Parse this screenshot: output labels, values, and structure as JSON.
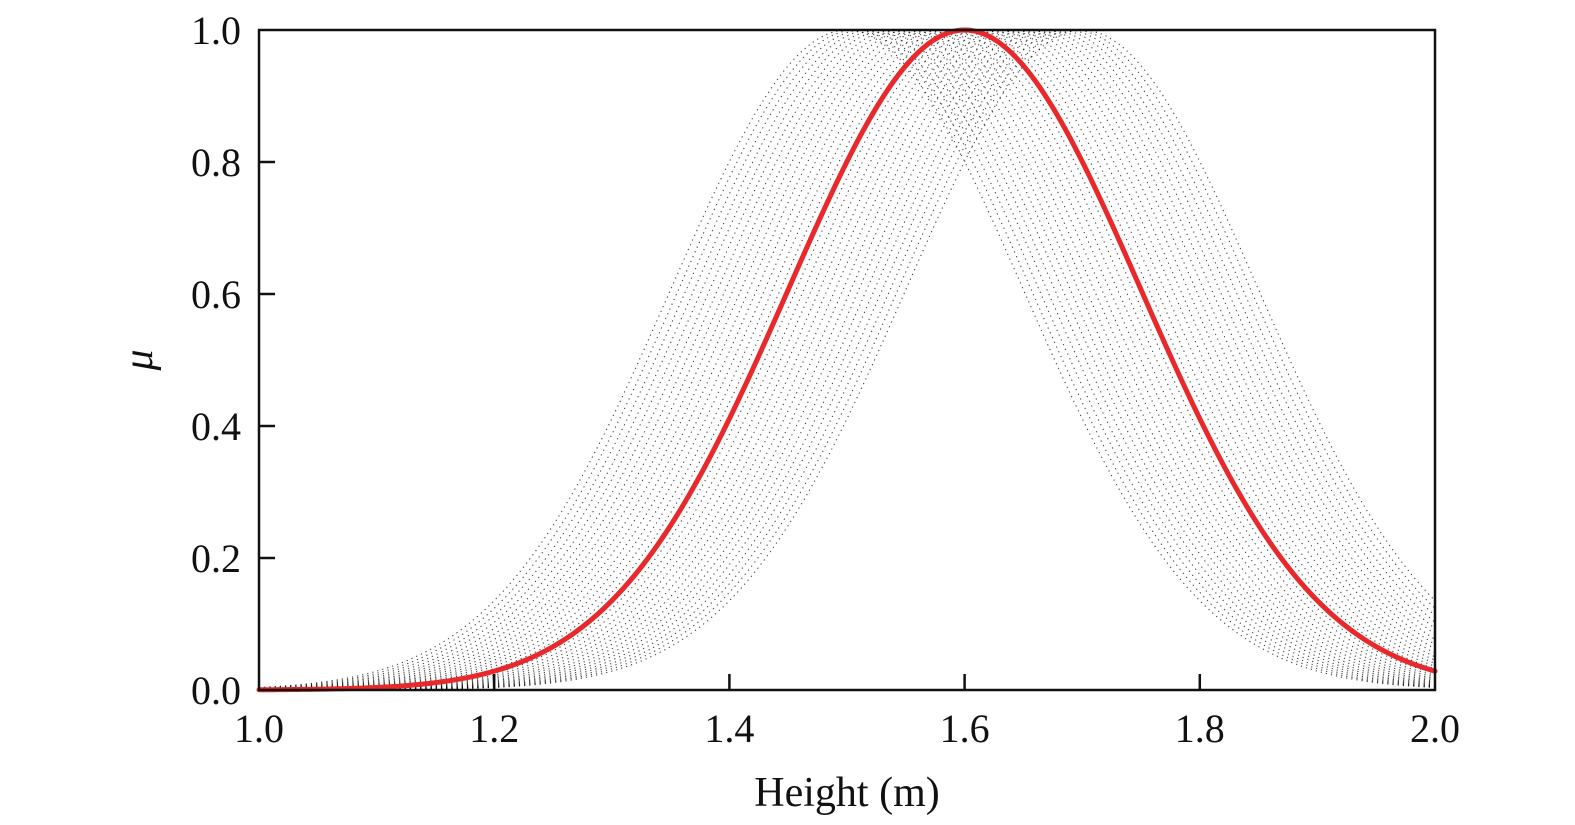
{
  "chart_data": {
    "type": "line",
    "xlabel": "Height (m)",
    "ylabel": "μ",
    "xlim": [
      1.0,
      2.0
    ],
    "ylim": [
      0.0,
      1.0
    ],
    "x_ticks": [
      "1.0",
      "1.2",
      "1.4",
      "1.6",
      "1.8",
      "2.0"
    ],
    "y_ticks": [
      "0.0",
      "0.2",
      "0.4",
      "0.6",
      "0.8",
      "1.0"
    ],
    "grid": false,
    "legend": "none",
    "main_curve": {
      "shape": "gaussian",
      "mean": 1.6,
      "sigma": 0.15,
      "color": "#e8282b",
      "x": [
        1.0,
        1.1,
        1.2,
        1.3,
        1.4,
        1.5,
        1.6,
        1.7,
        1.8,
        1.9,
        2.0
      ],
      "y": [
        0.0,
        0.004,
        0.03,
        0.14,
        0.41,
        0.8,
        1.0,
        0.8,
        0.41,
        0.14,
        0.03
      ]
    },
    "uncertainty_band": {
      "shape": "gaussian family",
      "mean_range": [
        1.5,
        1.7
      ],
      "sigma": 0.15,
      "color": "#000000",
      "style": "dotted"
    }
  }
}
